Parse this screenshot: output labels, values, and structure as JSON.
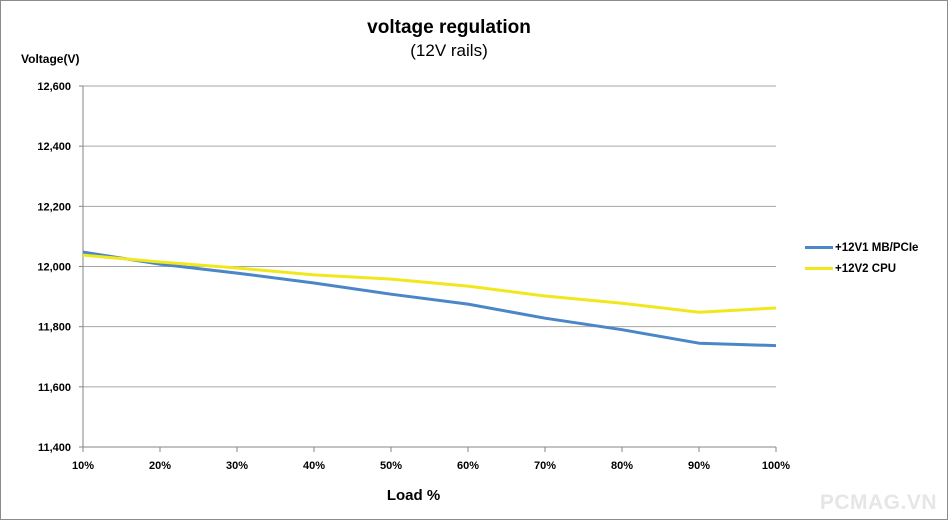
{
  "watermark": "PCMAG.VN",
  "chart_data": {
    "type": "line",
    "title": "voltage regulation",
    "subtitle": "(12V rails)",
    "xlabel": "Load %",
    "ylabel": "Voltage(V)",
    "categories": [
      "10%",
      "20%",
      "30%",
      "40%",
      "50%",
      "60%",
      "70%",
      "80%",
      "90%",
      "100%"
    ],
    "yticks": [
      "12,600",
      "12,400",
      "12,200",
      "12,000",
      "11,800",
      "11,600",
      "11,400"
    ],
    "ylim": [
      11.4,
      12.6
    ],
    "grid": true,
    "legend_position": "right",
    "series": [
      {
        "name": "+12V1 MB/PCIe",
        "color": "#4a86c8",
        "values": [
          12.048,
          12.008,
          11.978,
          11.945,
          11.908,
          11.875,
          11.828,
          11.79,
          11.745,
          11.737
        ]
      },
      {
        "name": "+12V2 CPU",
        "color": "#f0e81c",
        "values": [
          12.038,
          12.015,
          11.995,
          11.972,
          11.958,
          11.935,
          11.902,
          11.878,
          11.848,
          11.862
        ]
      }
    ]
  }
}
